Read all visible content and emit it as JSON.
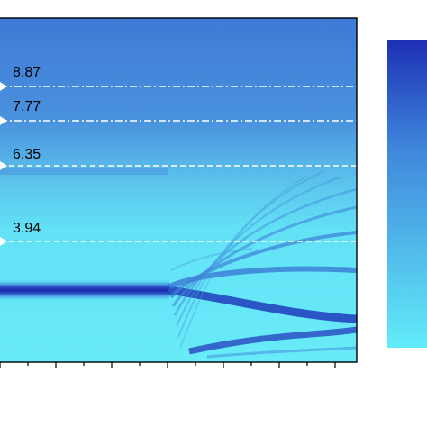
{
  "chart_data": {
    "type": "heatmap",
    "title": "",
    "xlabel": "",
    "ylabel": "",
    "grid": false,
    "legend": "colorbar at right, no printed tick labels",
    "colormap": {
      "low": "#62ecf9",
      "mid": "#3f86db",
      "high": "#1c2fb4"
    },
    "background_color": "#4a86d9",
    "annotations": [
      {
        "label": "8.87",
        "value": 8.87,
        "style": "dash-dot"
      },
      {
        "label": "7.77",
        "value": 7.77,
        "style": "dash-dot"
      },
      {
        "label": "6.35",
        "value": 6.35,
        "style": "dashed"
      },
      {
        "label": "3.94",
        "value": 3.94,
        "style": "dashed"
      }
    ],
    "x_minor_ticks": 13
  }
}
